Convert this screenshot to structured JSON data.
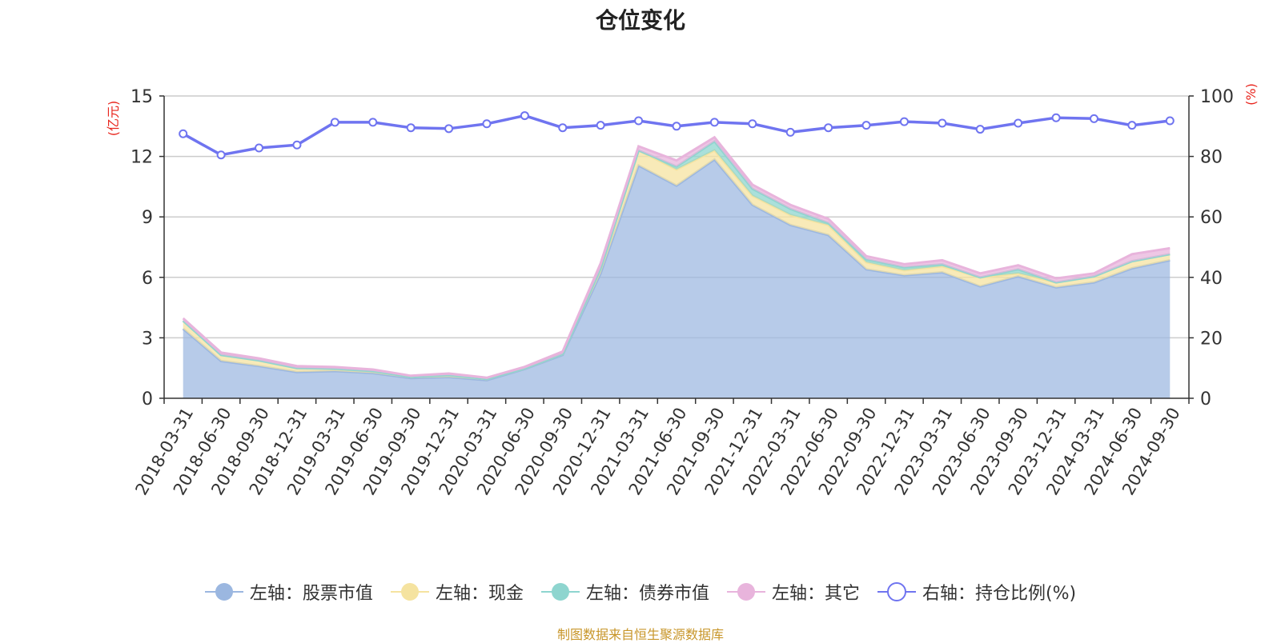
{
  "chart_data": {
    "type": "area",
    "title": "仓位变化",
    "left_axis": {
      "unit": "(亿元)",
      "ticks": [
        "0",
        "3",
        "6",
        "9",
        "12",
        "15"
      ],
      "ylim": [
        0,
        15
      ]
    },
    "right_axis": {
      "unit": "(%)",
      "ticks": [
        "0",
        "20",
        "40",
        "60",
        "80",
        "100"
      ],
      "ylim": [
        0,
        100
      ]
    },
    "x_axis_labels": [
      "2018-03-31",
      "2018-06-30",
      "2018-09-30",
      "2018-12-31",
      "2019-03-31",
      "2019-06-30",
      "2019-09-30",
      "2019-12-31",
      "2020-03-31",
      "2020-06-30",
      "2020-09-30",
      "2020-12-31",
      "2021-03-31",
      "2021-06-30",
      "2021-09-30",
      "2021-12-31",
      "2022-03-31",
      "2022-06-30",
      "2022-09-30",
      "2022-12-31",
      "2023-03-31",
      "2023-06-30",
      "2023-09-30",
      "2023-12-31",
      "2024-03-31",
      "2024-06-30",
      "2024-09-30"
    ],
    "grid": true,
    "legend_position": "bottom",
    "series": [
      {
        "name": "左轴：股票市值",
        "axis": "left",
        "stacked": true,
        "color": "#9bb7e0",
        "values": [
          3.45,
          1.85,
          1.6,
          1.3,
          1.35,
          1.25,
          1.0,
          1.05,
          0.9,
          1.45,
          2.15,
          6.2,
          11.55,
          10.55,
          11.85,
          9.6,
          8.6,
          8.1,
          6.4,
          6.1,
          6.25,
          5.55,
          6.05,
          5.5,
          5.75,
          6.45,
          6.85
        ]
      },
      {
        "name": "左轴：现金",
        "axis": "left",
        "stacked": true,
        "color": "#f5e3a0",
        "values": [
          0.4,
          0.3,
          0.28,
          0.2,
          0.12,
          0.1,
          0.06,
          0.1,
          0.06,
          0.03,
          0.05,
          0.25,
          0.75,
          0.8,
          0.45,
          0.45,
          0.5,
          0.5,
          0.35,
          0.25,
          0.3,
          0.45,
          0.15,
          0.25,
          0.3,
          0.35,
          0.3
        ]
      },
      {
        "name": "左轴：债券市值",
        "axis": "left",
        "stacked": true,
        "color": "#8ed5cf",
        "values": [
          0,
          0,
          0,
          0,
          0,
          0,
          0,
          0,
          0,
          0,
          0,
          0,
          0,
          0.15,
          0.45,
          0.35,
          0.3,
          0.1,
          0.15,
          0.15,
          0.1,
          0,
          0.2,
          0,
          0,
          0,
          0
        ]
      },
      {
        "name": "左轴：其它",
        "axis": "left",
        "stacked": true,
        "color": "#e8b4dc",
        "values": [
          0.12,
          0.12,
          0.1,
          0.1,
          0.08,
          0.08,
          0.06,
          0.08,
          0.06,
          0.08,
          0.12,
          0.25,
          0.2,
          0.3,
          0.2,
          0.2,
          0.2,
          0.2,
          0.15,
          0.15,
          0.2,
          0.2,
          0.2,
          0.2,
          0.15,
          0.35,
          0.3
        ]
      },
      {
        "name": "右轴：持仓比例(%)",
        "axis": "right",
        "color": "#6f74f0",
        "values": [
          87.5,
          80.5,
          82.8,
          83.8,
          91.3,
          91.3,
          89.5,
          89.2,
          90.8,
          93.5,
          89.5,
          90.3,
          91.8,
          90.0,
          91.3,
          90.8,
          88.0,
          89.5,
          90.3,
          91.5,
          91.0,
          89.0,
          91.0,
          92.8,
          92.5,
          90.3,
          91.8
        ]
      }
    ]
  },
  "source_note": "制图数据来自恒生聚源数据库"
}
